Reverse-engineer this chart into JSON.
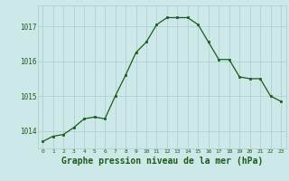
{
  "x": [
    0,
    1,
    2,
    3,
    4,
    5,
    6,
    7,
    8,
    9,
    10,
    11,
    12,
    13,
    14,
    15,
    16,
    17,
    18,
    19,
    20,
    21,
    22,
    23
  ],
  "y": [
    1013.7,
    1013.85,
    1013.9,
    1014.1,
    1014.35,
    1014.4,
    1014.35,
    1015.0,
    1015.6,
    1016.25,
    1016.55,
    1017.05,
    1017.25,
    1017.25,
    1017.25,
    1017.05,
    1016.55,
    1016.05,
    1016.05,
    1015.55,
    1015.5,
    1015.5,
    1015.0,
    1014.85
  ],
  "line_color": "#1a5c1a",
  "marker": "s",
  "marker_size": 2,
  "bg_color": "#cce8e8",
  "grid_color": "#aacccc",
  "xlabel": "Graphe pression niveau de la mer (hPa)",
  "xlabel_fontsize": 7,
  "ytick_labels": [
    "1014",
    "1015",
    "1016",
    "1017"
  ],
  "ytick_values": [
    1014,
    1015,
    1016,
    1017
  ],
  "xtick_labels": [
    "0",
    "1",
    "2",
    "3",
    "4",
    "5",
    "6",
    "7",
    "8",
    "9",
    "10",
    "11",
    "12",
    "13",
    "14",
    "15",
    "16",
    "17",
    "18",
    "19",
    "20",
    "21",
    "22",
    "23"
  ],
  "ylim": [
    1013.5,
    1017.6
  ],
  "xlim": [
    -0.5,
    23.5
  ],
  "fig_bg_color": "#cce8e8",
  "plot_bg_color": "#cce8e8"
}
